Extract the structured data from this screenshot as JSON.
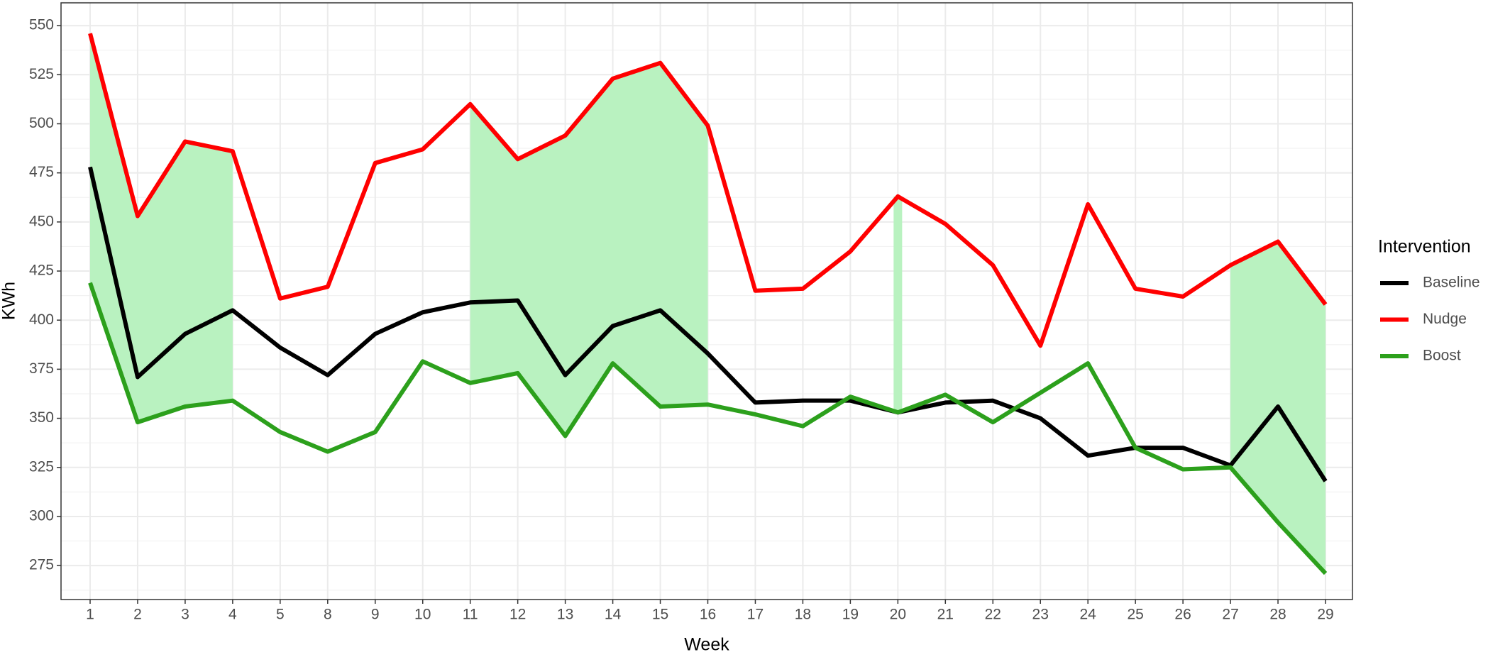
{
  "chart_data": {
    "type": "line",
    "x_label": "Week",
    "y_label": "KWh",
    "legend_title": "Intervention",
    "categories": [
      "1",
      "2",
      "3",
      "4",
      "5",
      "8",
      "9",
      "10",
      "11",
      "12",
      "13",
      "14",
      "15",
      "16",
      "17",
      "18",
      "19",
      "20",
      "21",
      "22",
      "23",
      "24",
      "25",
      "26",
      "27",
      "28",
      "29"
    ],
    "series": [
      {
        "name": "Baseline",
        "color": "#000000",
        "values": [
          478,
          371,
          393,
          405,
          386,
          372,
          393,
          404,
          409,
          410,
          372,
          397,
          405,
          383,
          358,
          359,
          359,
          353,
          358,
          359,
          350,
          331,
          335,
          335,
          326,
          356,
          318
        ]
      },
      {
        "name": "Nudge",
        "color": "#ff0000",
        "values": [
          546,
          453,
          491,
          486,
          411,
          417,
          480,
          487,
          510,
          482,
          494,
          523,
          531,
          499,
          415,
          416,
          435,
          463,
          449,
          428,
          387,
          459,
          416,
          412,
          428,
          440,
          408
        ]
      },
      {
        "name": "Boost",
        "color": "#2ca01c",
        "values": [
          419,
          348,
          356,
          359,
          343,
          333,
          343,
          379,
          368,
          373,
          341,
          378,
          356,
          357,
          352,
          346,
          361,
          353,
          362,
          348,
          363,
          378,
          335,
          324,
          325,
          297,
          271
        ]
      }
    ],
    "highlight_ranges": [
      [
        "1",
        "4"
      ],
      [
        "11",
        "16"
      ],
      [
        "20",
        "20"
      ],
      [
        "27",
        "29"
      ]
    ],
    "highlight_color": "#b9f2c0",
    "ylim": [
      257.7,
      561.6
    ],
    "yticks": [
      275,
      300,
      325,
      350,
      375,
      400,
      425,
      450,
      475,
      500,
      525,
      550
    ],
    "grid": true
  }
}
